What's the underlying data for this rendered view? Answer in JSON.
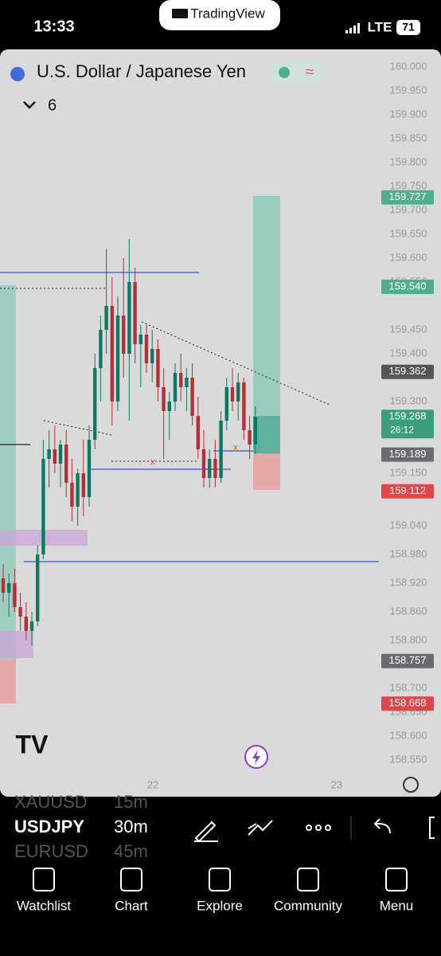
{
  "status_bar": {
    "time": "13:33",
    "carrier": "LTE",
    "battery": "71"
  },
  "banner": "TradingView",
  "header": {
    "symbol": "U.S. Dollar / Japanese Yen",
    "indicator_count": "6"
  },
  "price_axis": {
    "ticks": [
      {
        "value": 160.0,
        "label": "160.000"
      },
      {
        "value": 159.95,
        "label": "159.950"
      },
      {
        "value": 159.9,
        "label": "159.900"
      },
      {
        "value": 159.85,
        "label": "159.850"
      },
      {
        "value": 159.8,
        "label": "159.800"
      },
      {
        "value": 159.75,
        "label": "159.750"
      },
      {
        "value": 159.7,
        "label": "159.700"
      },
      {
        "value": 159.65,
        "label": "159.650"
      },
      {
        "value": 159.6,
        "label": "159.600"
      },
      {
        "value": 159.55,
        "label": "159.550"
      },
      {
        "value": 159.45,
        "label": "159.450"
      },
      {
        "value": 159.4,
        "label": "159.400"
      },
      {
        "value": 159.3,
        "label": "159.300"
      },
      {
        "value": 159.15,
        "label": "159.150"
      },
      {
        "value": 159.04,
        "label": "159.040"
      },
      {
        "value": 158.98,
        "label": "158.980"
      },
      {
        "value": 158.92,
        "label": "158.920"
      },
      {
        "value": 158.86,
        "label": "158.860"
      },
      {
        "value": 158.8,
        "label": "158.800"
      },
      {
        "value": 158.7,
        "label": "158.700"
      },
      {
        "value": 158.65,
        "label": "158.650"
      },
      {
        "value": 158.6,
        "label": "158.600"
      },
      {
        "value": 158.55,
        "label": "158.550"
      }
    ],
    "badges": [
      {
        "value": 159.727,
        "label": "159.727",
        "color": "#4caf8f"
      },
      {
        "value": 159.54,
        "label": "159.540",
        "color": "#4caf8f"
      },
      {
        "value": 159.362,
        "label": "159.362",
        "color": "#555555"
      },
      {
        "value": 159.268,
        "label": "159.268",
        "sub": "26:12",
        "color": "#3a9e7c"
      },
      {
        "value": 159.189,
        "label": "159.189",
        "color": "#6a6a70"
      },
      {
        "value": 159.112,
        "label": "159.112",
        "color": "#e04848"
      },
      {
        "value": 158.757,
        "label": "158.757",
        "color": "#6a6a70"
      },
      {
        "value": 158.668,
        "label": "158.668",
        "color": "#e04848"
      }
    ]
  },
  "time_axis": [
    "22",
    "23"
  ],
  "candles": [
    [
      158.93,
      158.96,
      158.88,
      158.9
    ],
    [
      158.9,
      158.94,
      158.85,
      158.92
    ],
    [
      158.92,
      158.95,
      158.86,
      158.87
    ],
    [
      158.87,
      158.9,
      158.82,
      158.85
    ],
    [
      158.85,
      158.88,
      158.8,
      158.82
    ],
    [
      158.82,
      158.86,
      158.79,
      158.84
    ],
    [
      158.84,
      159.0,
      158.83,
      158.98
    ],
    [
      158.98,
      159.22,
      158.97,
      159.18
    ],
    [
      159.18,
      159.24,
      159.12,
      159.2
    ],
    [
      159.2,
      159.25,
      159.15,
      159.17
    ],
    [
      159.17,
      159.22,
      159.12,
      159.21
    ],
    [
      159.21,
      159.24,
      159.1,
      159.13
    ],
    [
      159.13,
      159.18,
      159.05,
      159.08
    ],
    [
      159.08,
      159.16,
      159.04,
      159.15
    ],
    [
      159.15,
      159.22,
      159.06,
      159.1
    ],
    [
      159.1,
      159.25,
      159.08,
      159.22
    ],
    [
      159.22,
      159.4,
      159.2,
      159.37
    ],
    [
      159.37,
      159.48,
      159.3,
      159.45
    ],
    [
      159.45,
      159.62,
      159.4,
      159.5
    ],
    [
      159.5,
      159.56,
      159.25,
      159.3
    ],
    [
      159.3,
      159.52,
      159.28,
      159.48
    ],
    [
      159.48,
      159.6,
      159.35,
      159.4
    ],
    [
      159.4,
      159.64,
      159.26,
      159.55
    ],
    [
      159.55,
      159.58,
      159.38,
      159.42
    ],
    [
      159.42,
      159.46,
      159.33,
      159.44
    ],
    [
      159.44,
      159.46,
      159.36,
      159.38
    ],
    [
      159.38,
      159.45,
      159.34,
      159.41
    ],
    [
      159.41,
      159.43,
      159.3,
      159.33
    ],
    [
      159.33,
      159.37,
      159.18,
      159.28
    ],
    [
      159.28,
      159.32,
      159.22,
      159.3
    ],
    [
      159.3,
      159.38,
      159.28,
      159.36
    ],
    [
      159.36,
      159.4,
      159.3,
      159.33
    ],
    [
      159.33,
      159.37,
      159.28,
      159.35
    ],
    [
      159.35,
      159.38,
      159.25,
      159.27
    ],
    [
      159.27,
      159.31,
      159.18,
      159.2
    ],
    [
      159.2,
      159.24,
      159.12,
      159.14
    ],
    [
      159.14,
      159.2,
      159.12,
      159.18
    ],
    [
      159.18,
      159.22,
      159.12,
      159.14
    ],
    [
      159.14,
      159.28,
      159.13,
      159.26
    ],
    [
      159.26,
      159.35,
      159.24,
      159.33
    ],
    [
      159.33,
      159.37,
      159.28,
      159.3
    ],
    [
      159.3,
      159.36,
      159.26,
      159.34
    ],
    [
      159.34,
      159.35,
      159.22,
      159.24
    ],
    [
      159.24,
      159.27,
      159.18,
      159.21
    ],
    [
      159.21,
      159.29,
      159.19,
      159.268
    ]
  ],
  "toolbar": {
    "symbols": [
      "XAUUSD",
      "USDJPY",
      "EURUSD"
    ],
    "intervals": [
      "15m",
      "30m",
      "45m"
    ]
  },
  "nav": [
    "Watchlist",
    "Chart",
    "Explore",
    "Community",
    "Menu"
  ]
}
